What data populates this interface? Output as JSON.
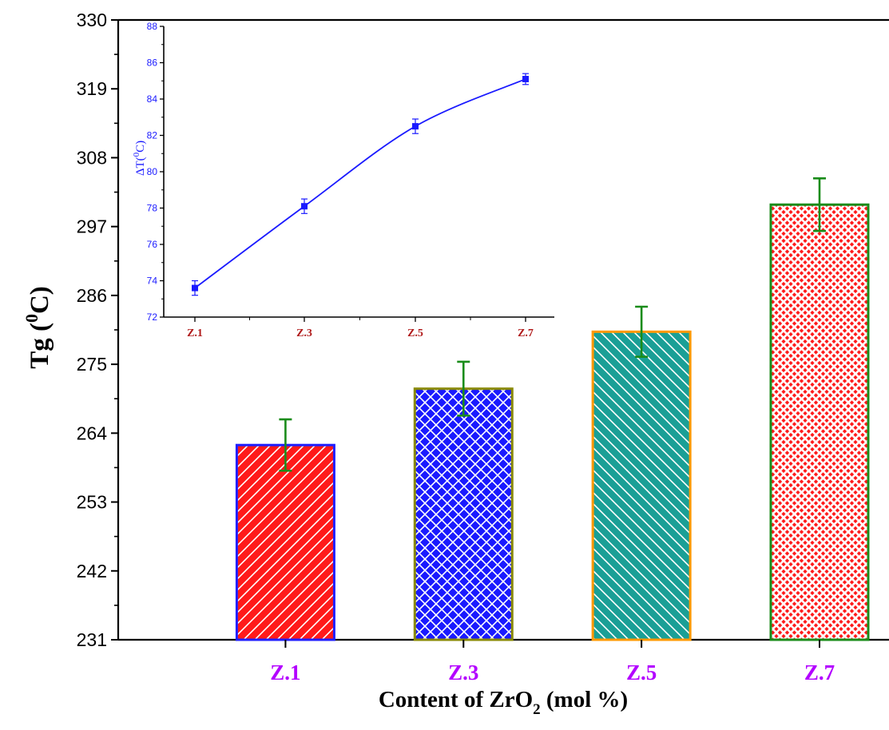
{
  "chart_data": [
    {
      "type": "bar",
      "xlabel": "Content of  ZrO",
      "xlabel_sub": "2",
      "xlabel_tail": " (mol %)",
      "ylabel": "Tg (",
      "ylabel_sup": "0",
      "ylabel_tail": "C)",
      "categories": [
        "Z.1",
        "Z.3",
        "Z.5",
        "Z.7"
      ],
      "values": [
        262.1,
        271.1,
        280.2,
        300.5
      ],
      "errors": [
        4.1,
        4.3,
        4.0,
        4.2
      ],
      "ylim": [
        231,
        330
      ],
      "yticks": [
        231,
        242,
        253,
        264,
        275,
        286,
        297,
        308,
        319,
        330
      ],
      "fill_colors": [
        "#ff1a1a",
        "#1a1aff",
        "#1a9f96",
        "#ff1a1a"
      ],
      "edge_colors": [
        "#1f1fff",
        "#8a8a00",
        "#ff9900",
        "#1a8c1a"
      ],
      "patterns": [
        "diagonal",
        "crosshatch",
        "backdiagonal",
        "dense-crosshatch"
      ],
      "error_bar_color": "#1a8c1a",
      "category_label_color": "#b300ff"
    },
    {
      "type": "line",
      "inset": true,
      "ylabel": "ΔT(",
      "ylabel_sup": "0",
      "ylabel_tail": "C)",
      "x": [
        "Z.1",
        "Z.3",
        "Z.5",
        "Z.7"
      ],
      "y": [
        73.6,
        78.1,
        82.5,
        85.1
      ],
      "errors": [
        0.4,
        0.4,
        0.4,
        0.3
      ],
      "ylim": [
        72,
        88
      ],
      "yticks": [
        72,
        74,
        76,
        78,
        80,
        82,
        84,
        86,
        88
      ],
      "line_color": "#1a1aff",
      "tick_label_color": "#1a1aff",
      "category_label_color": "#b01a1a"
    }
  ]
}
